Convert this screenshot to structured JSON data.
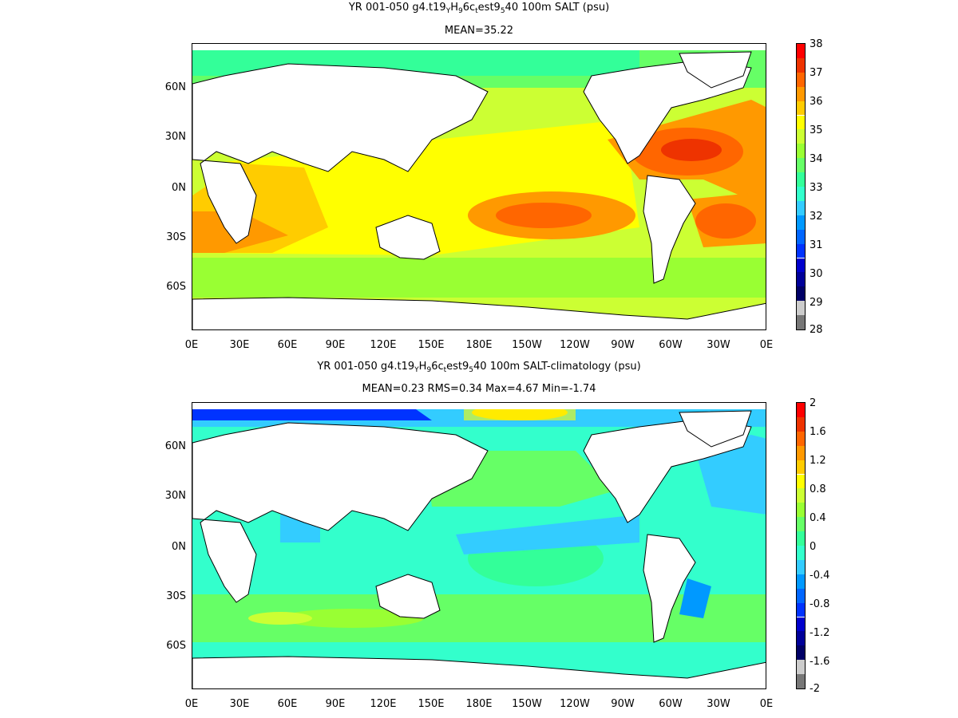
{
  "panels": [
    {
      "title_parts": [
        "YR 001-050 g4.t19",
        "Y",
        "H",
        "9",
        "6c",
        "t",
        "est9",
        "5",
        "40 100m SALT (psu)"
      ],
      "stats": "MEAN=35.22",
      "colorbar": {
        "labels": [
          "38",
          "37",
          "36",
          "35",
          "34",
          "33",
          "32",
          "31",
          "30",
          "29",
          "28"
        ],
        "colors": [
          "#ff0000",
          "#ee3300",
          "#ff6600",
          "#ff9900",
          "#ffcc00",
          "#ffff00",
          "#ccff33",
          "#99ff33",
          "#66ff66",
          "#33ff99",
          "#33ffcc",
          "#33ccff",
          "#0099ff",
          "#0066ff",
          "#0033ff",
          "#0000cc",
          "#000099",
          "#000066",
          "#cccccc",
          "#777777"
        ]
      }
    },
    {
      "title_parts": [
        "YR 001-050 g4.t19",
        "Y",
        "H",
        "9",
        "6c",
        "t",
        "est9",
        "5",
        "40 100m SALT-climatology (psu)"
      ],
      "stats": "MEAN=0.23   RMS=0.34   Max=4.67   Min=-1.74",
      "colorbar": {
        "labels": [
          "2",
          "1.6",
          "1.2",
          "0.8",
          "0.4",
          "0",
          "-0.4",
          "-0.8",
          "-1.2",
          "-1.6",
          "-2"
        ],
        "colors": [
          "#ff0000",
          "#ee3300",
          "#ff6600",
          "#ff9900",
          "#ffcc00",
          "#ffff00",
          "#ccff33",
          "#99ff33",
          "#66ff66",
          "#33ff99",
          "#33ffcc",
          "#33ccff",
          "#0099ff",
          "#0066ff",
          "#0033ff",
          "#0000cc",
          "#000099",
          "#000066",
          "#cccccc",
          "#777777"
        ]
      }
    }
  ],
  "lat_labels": [
    "60N",
    "30N",
    "0N",
    "30S",
    "60S"
  ],
  "lon_labels": [
    "0E",
    "30E",
    "60E",
    "90E",
    "120E",
    "150E",
    "180E",
    "150W",
    "120W",
    "90W",
    "60W",
    "30W",
    "0E"
  ]
}
